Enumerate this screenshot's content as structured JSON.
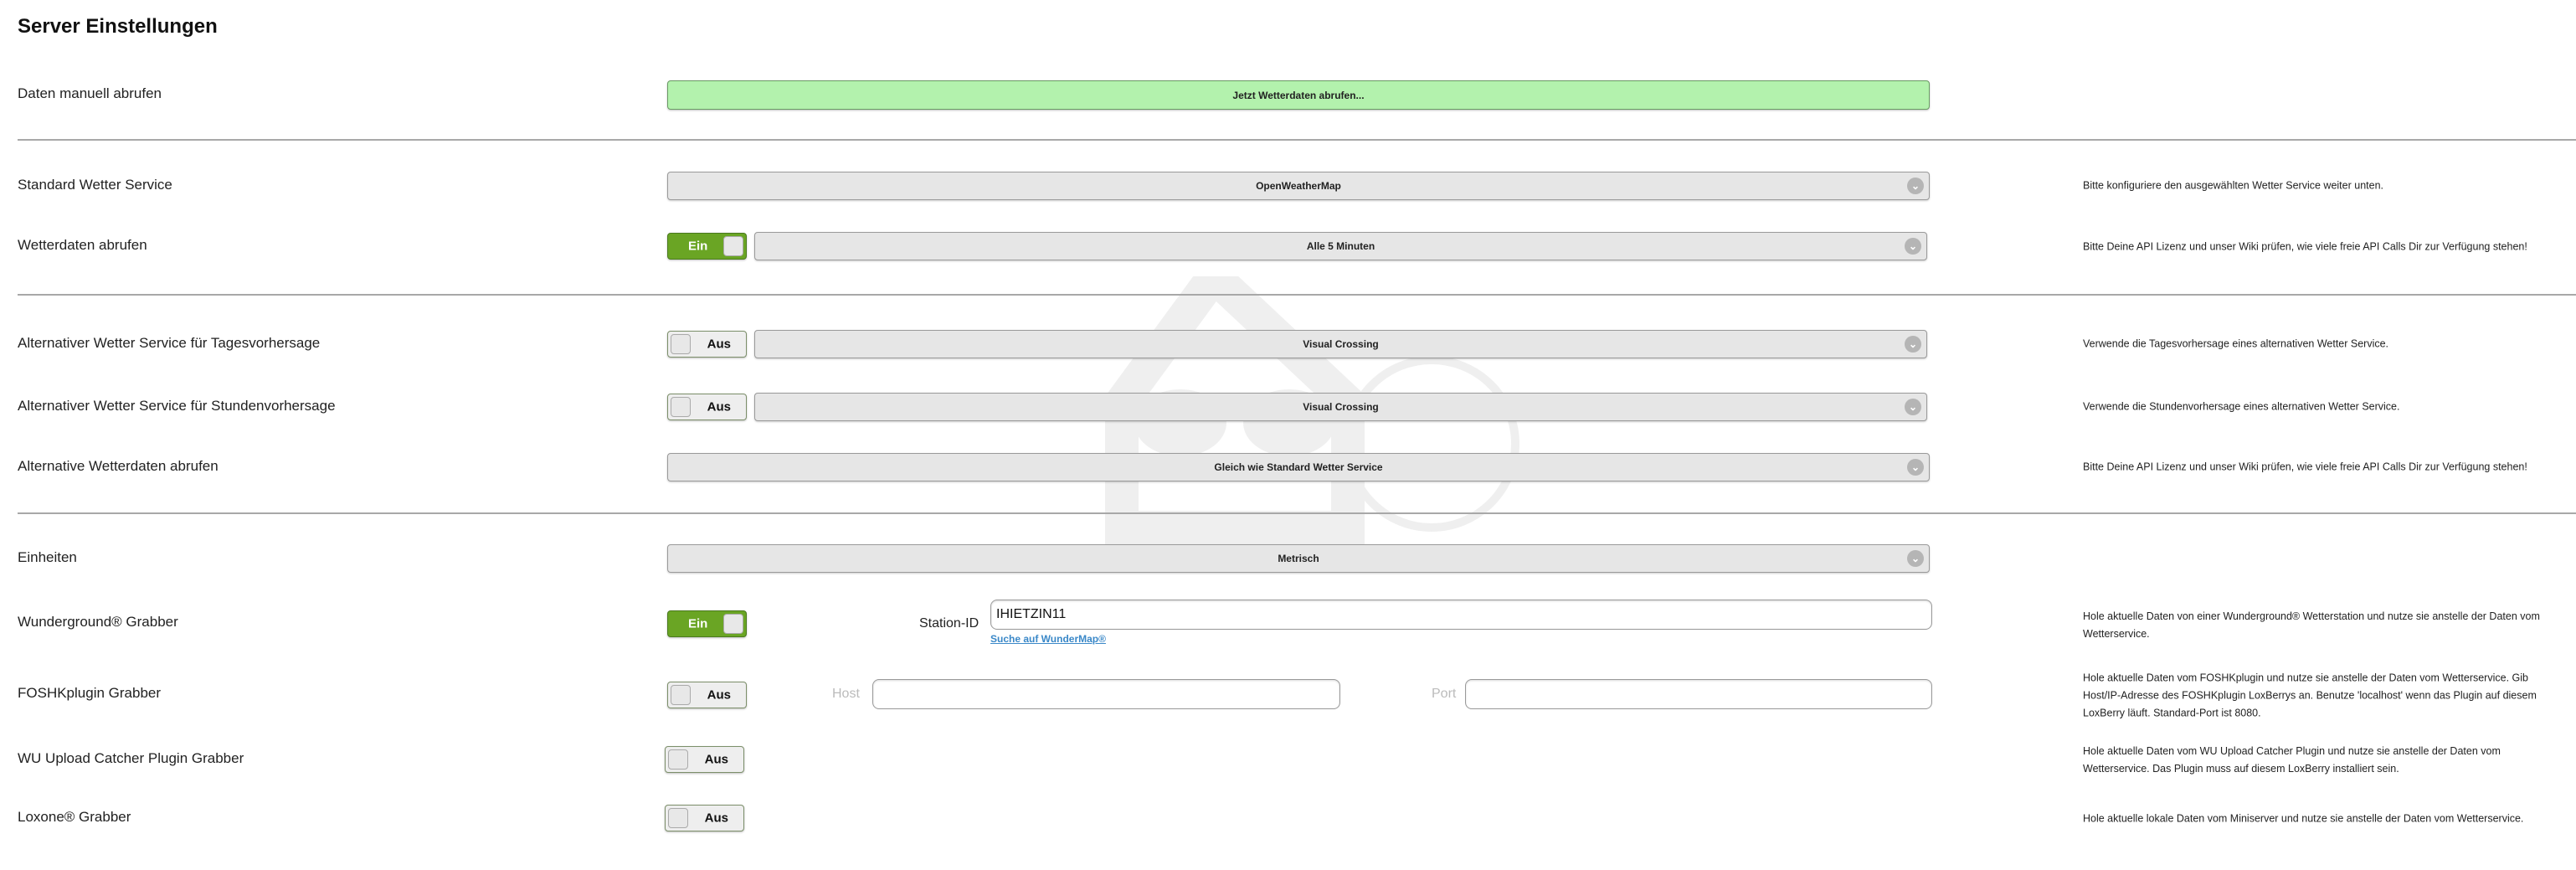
{
  "page": {
    "title": "Server Einstellungen"
  },
  "colors": {
    "accent_green": "#6aa524",
    "button_green": "#b3f2ad",
    "link": "#3a88c8"
  },
  "rows": {
    "manual": {
      "label": "Daten manuell abrufen",
      "button": "Jetzt Wetterdaten abrufen..."
    },
    "standard_service": {
      "label": "Standard Wetter Service",
      "value": "OpenWeatherMap",
      "help": "Bitte konfiguriere den ausgewählten Wetter Service weiter unten."
    },
    "fetch": {
      "label": "Wetterdaten abrufen",
      "toggle": "Ein",
      "toggle_on": true,
      "value": "Alle 5 Minuten",
      "help": "Bitte Deine API Lizenz und unser Wiki prüfen, wie viele freie API Calls Dir zur Verfügung stehen!"
    },
    "alt_daily": {
      "label": "Alternativer Wetter Service für Tagesvorhersage",
      "toggle": "Aus",
      "toggle_on": false,
      "value": "Visual Crossing",
      "help": "Verwende die Tagesvorhersage eines alternativen Wetter Service."
    },
    "alt_hourly": {
      "label": "Alternativer Wetter Service für Stundenvorhersage",
      "toggle": "Aus",
      "toggle_on": false,
      "value": "Visual Crossing",
      "help": "Verwende die Stundenvorhersage eines alternativen Wetter Service."
    },
    "alt_fetch": {
      "label": "Alternative Wetterdaten abrufen",
      "value": "Gleich wie Standard Wetter Service",
      "help": "Bitte Deine API Lizenz und unser Wiki prüfen, wie viele freie API Calls Dir zur Verfügung stehen!"
    },
    "units": {
      "label": "Einheiten",
      "value": "Metrisch"
    },
    "wunderground": {
      "label": "Wunderground® Grabber",
      "toggle": "Ein",
      "toggle_on": true,
      "station_label": "Station-ID",
      "station_value": "IHIETZIN11",
      "link": "Suche auf WunderMap®",
      "help": "Hole aktuelle Daten von einer Wunderground® Wetterstation und nutze sie anstelle der Daten vom Wetterservice."
    },
    "foshk": {
      "label": "FOSHKplugin Grabber",
      "toggle": "Aus",
      "toggle_on": false,
      "host_label": "Host",
      "host_value": "",
      "port_label": "Port",
      "port_value": "",
      "help": "Hole aktuelle Daten vom FOSHKplugin und nutze sie anstelle der Daten vom Wetterservice. Gib Host/IP-Adresse des FOSHKplugin LoxBerrys an. Benutze 'localhost' wenn das Plugin auf diesem LoxBerry läuft. Standard-Port ist 8080."
    },
    "wu_upload": {
      "label": "WU Upload Catcher Plugin Grabber",
      "toggle": "Aus",
      "toggle_on": false,
      "help": "Hole aktuelle Daten vom WU Upload Catcher Plugin und nutze sie anstelle der Daten vom Wetterservice. Das Plugin muss auf diesem LoxBerry installiert sein."
    },
    "loxone": {
      "label": "Loxone® Grabber",
      "toggle": "Aus",
      "toggle_on": false,
      "help": "Hole aktuelle lokale Daten vom Miniserver und nutze sie anstelle der Daten vom Wetterservice."
    }
  }
}
